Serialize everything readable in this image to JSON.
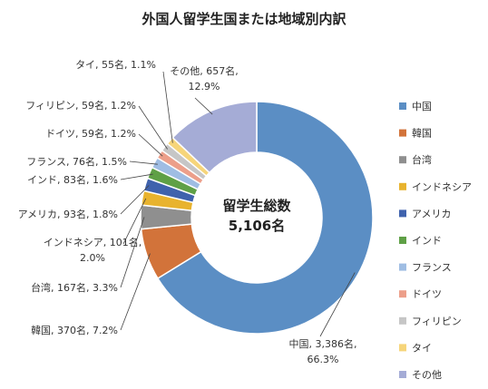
{
  "chart_data": {
    "type": "pie",
    "title": "外国人留学生国または地域別内訳",
    "center_label": [
      "留学生総数",
      "5,106名"
    ],
    "slices": [
      {
        "label": "中国",
        "count": "3,386名",
        "percent": 66.3,
        "percent_text": "66.3%",
        "color": "#5b8ec4"
      },
      {
        "label": "韓国",
        "count": "370名",
        "percent": 7.2,
        "percent_text": "7.2%",
        "color": "#d2733a"
      },
      {
        "label": "台湾",
        "count": "167名",
        "percent": 3.3,
        "percent_text": "3.3%",
        "color": "#8f8f8f"
      },
      {
        "label": "インドネシア",
        "count": "101名",
        "percent": 2.0,
        "percent_text": "2.0%",
        "color": "#e8b32e"
      },
      {
        "label": "アメリカ",
        "count": "93名",
        "percent": 1.8,
        "percent_text": "1.8%",
        "color": "#3f62ad"
      },
      {
        "label": "インド",
        "count": "83名",
        "percent": 1.6,
        "percent_text": "1.6%",
        "color": "#5fa046"
      },
      {
        "label": "フランス",
        "count": "76名",
        "percent": 1.5,
        "percent_text": "1.5%",
        "color": "#9fbde3"
      },
      {
        "label": "ドイツ",
        "count": "59名",
        "percent": 1.2,
        "percent_text": "1.2%",
        "color": "#ec9f8a"
      },
      {
        "label": "フィリピン",
        "count": "59名",
        "percent": 1.2,
        "percent_text": "1.2%",
        "color": "#c6c6c6"
      },
      {
        "label": "タイ",
        "count": "55名",
        "percent": 1.1,
        "percent_text": "1.1%",
        "color": "#f6d57a"
      },
      {
        "label": "その他",
        "count": "657名",
        "percent": 12.9,
        "percent_text": "12.9%",
        "color": "#a5acd6"
      }
    ],
    "legend_position": "right"
  }
}
